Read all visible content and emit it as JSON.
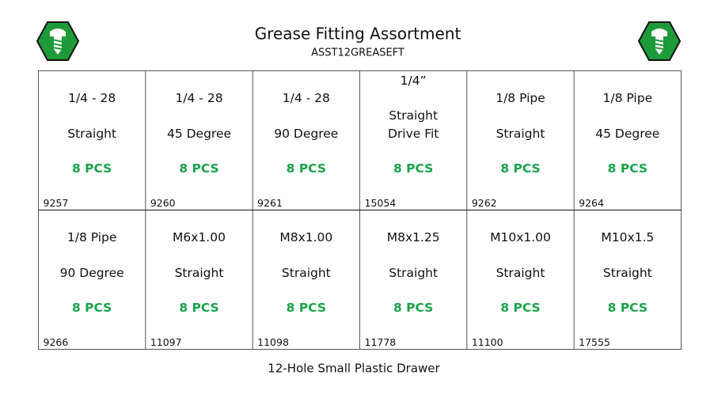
{
  "header": {
    "title": "Grease Fitting Assortment",
    "subtitle": "ASST12GREASEFT"
  },
  "cells": [
    {
      "lines": [
        "1/4 - 28",
        "Straight"
      ],
      "qty": "8 PCS",
      "part": "9257"
    },
    {
      "lines": [
        "1/4 - 28",
        "45 Degree"
      ],
      "qty": "8 PCS",
      "part": "9260"
    },
    {
      "lines": [
        "1/4 - 28",
        "90 Degree"
      ],
      "qty": "8 PCS",
      "part": "9261"
    },
    {
      "lines": [
        "1/4”",
        "Straight",
        "Drive Fit"
      ],
      "qty": "8 PCS",
      "part": "15054"
    },
    {
      "lines": [
        "1/8 Pipe",
        "Straight"
      ],
      "qty": "8 PCS",
      "part": "9262"
    },
    {
      "lines": [
        "1/8 Pipe",
        "45 Degree"
      ],
      "qty": "8 PCS",
      "part": "9264"
    },
    {
      "lines": [
        "1/8 Pipe",
        "90 Degree"
      ],
      "qty": "8 PCS",
      "part": "9266"
    },
    {
      "lines": [
        "M6x1.00",
        "Straight"
      ],
      "qty": "8 PCS",
      "part": "11097"
    },
    {
      "lines": [
        "M8x1.00",
        "Straight"
      ],
      "qty": "8 PCS",
      "part": "11098"
    },
    {
      "lines": [
        "M8x1.25",
        "Straight"
      ],
      "qty": "8 PCS",
      "part": "11778"
    },
    {
      "lines": [
        "M10x1.00",
        "Straight"
      ],
      "qty": "8 PCS",
      "part": "11100"
    },
    {
      "lines": [
        "M10x1.5",
        "Straight"
      ],
      "qty": "8 PCS",
      "part": "17555"
    }
  ],
  "footer": "12-Hole Small Plastic Drawer"
}
